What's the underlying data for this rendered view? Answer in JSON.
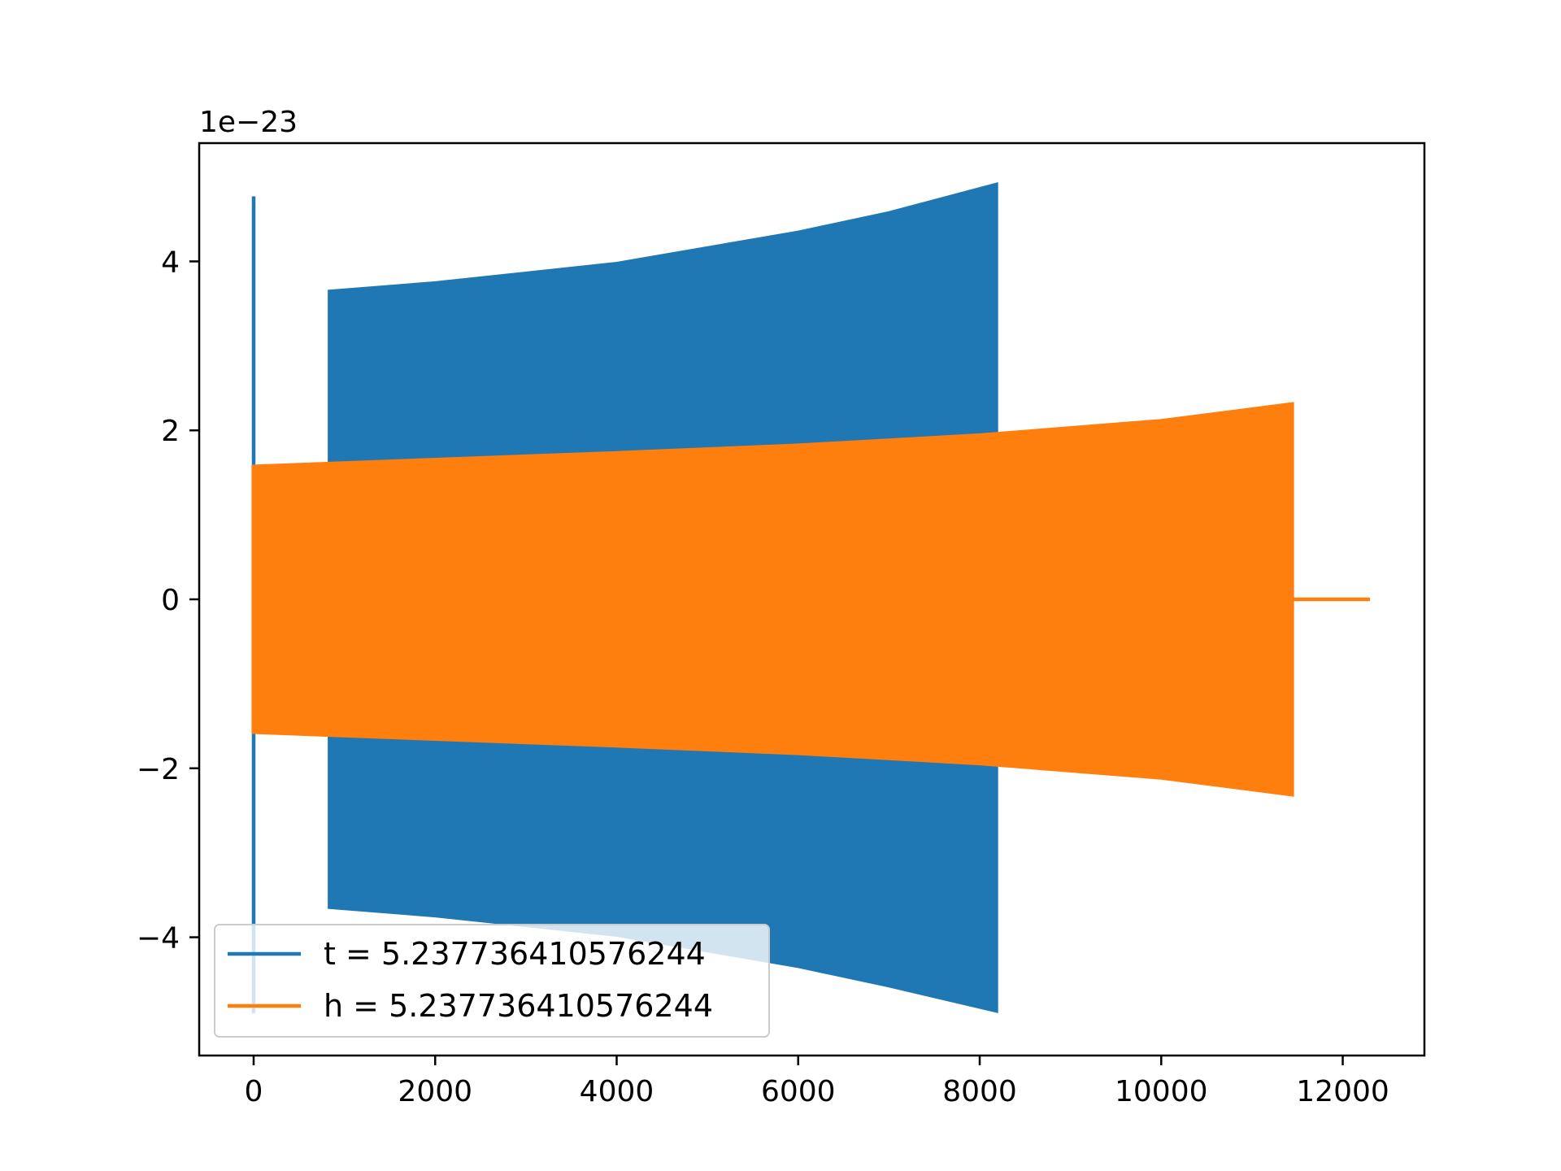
{
  "chart_data": {
    "type": "line",
    "title": "",
    "xlabel": "",
    "ylabel": "",
    "y_offset_label": "1e−23",
    "xlim": [
      -600,
      12900
    ],
    "ylim": [
      -5.4,
      5.4
    ],
    "x_ticks": [
      0,
      2000,
      4000,
      6000,
      8000,
      10000,
      12000
    ],
    "x_tick_labels": [
      "0",
      "2000",
      "4000",
      "6000",
      "8000",
      "10000",
      "12000"
    ],
    "y_ticks": [
      -4,
      -2,
      0,
      2,
      4
    ],
    "y_tick_labels": [
      "−4",
      "−2",
      "0",
      "2",
      "4"
    ],
    "grid": false,
    "legend_position": "lower-left",
    "series": [
      {
        "name": "t = 5.237736410576244",
        "color": "#1f77b4",
        "spike": {
          "x": 0,
          "y_max": 4.77,
          "y_min": -4.9
        },
        "envelope": {
          "x_start": 830,
          "x_end": 8190,
          "upper": [
            [
              830,
              3.65
            ],
            [
              2000,
              3.75
            ],
            [
              4000,
              3.98
            ],
            [
              6000,
              4.35
            ],
            [
              7000,
              4.58
            ],
            [
              8190,
              4.92
            ]
          ],
          "lower": [
            [
              830,
              -3.65
            ],
            [
              2000,
              -3.75
            ],
            [
              4000,
              -3.98
            ],
            [
              6000,
              -4.35
            ],
            [
              7000,
              -4.58
            ],
            [
              8190,
              -4.88
            ]
          ]
        }
      },
      {
        "name": "h = 5.237736410576244",
        "color": "#ff7f0e",
        "envelope": {
          "x_start": -10,
          "x_end": 11450,
          "upper": [
            [
              -10,
              1.58
            ],
            [
              2000,
              1.66
            ],
            [
              4000,
              1.74
            ],
            [
              6000,
              1.83
            ],
            [
              8000,
              1.95
            ],
            [
              10000,
              2.12
            ],
            [
              11450,
              2.32
            ]
          ],
          "lower": [
            [
              -10,
              -1.58
            ],
            [
              2000,
              -1.66
            ],
            [
              4000,
              -1.74
            ],
            [
              6000,
              -1.83
            ],
            [
              8000,
              -1.95
            ],
            [
              10000,
              -2.12
            ],
            [
              11450,
              -2.32
            ]
          ]
        },
        "tail": {
          "x_start": 11450,
          "x_end": 12300,
          "y": 0
        }
      }
    ]
  }
}
